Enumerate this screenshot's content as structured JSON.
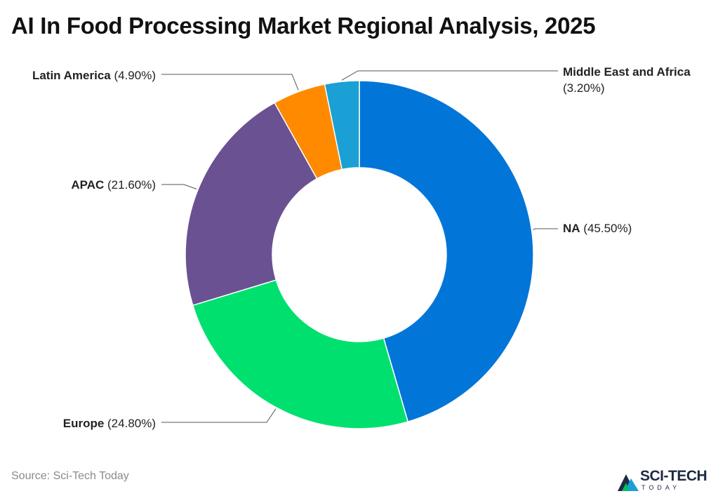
{
  "title": "AI In Food Processing Market Regional Analysis, 2025",
  "source": "Source: Sci-Tech Today",
  "logo": {
    "name": "SCI-TECH",
    "sub": "TODAY",
    "icon": "mountain-triangle-icon"
  },
  "chart_data": {
    "type": "pie",
    "variant": "donut",
    "title": "AI In Food Processing Market Regional Analysis, 2025",
    "unit": "%",
    "slices": [
      {
        "label": "NA",
        "value": 45.5,
        "display": "(45.50%)",
        "color": "#0275d8"
      },
      {
        "label": "Europe",
        "value": 24.8,
        "display": "(24.80%)",
        "color": "#00e06e"
      },
      {
        "label": "APAC",
        "value": 21.6,
        "display": "(21.60%)",
        "color": "#6a5191"
      },
      {
        "label": "Latin America",
        "value": 4.9,
        "display": "(4.90%)",
        "color": "#ff8a00"
      },
      {
        "label": "Middle East and Africa",
        "value": 3.2,
        "display": "(3.20%)",
        "color": "#1aa0d4"
      }
    ]
  }
}
